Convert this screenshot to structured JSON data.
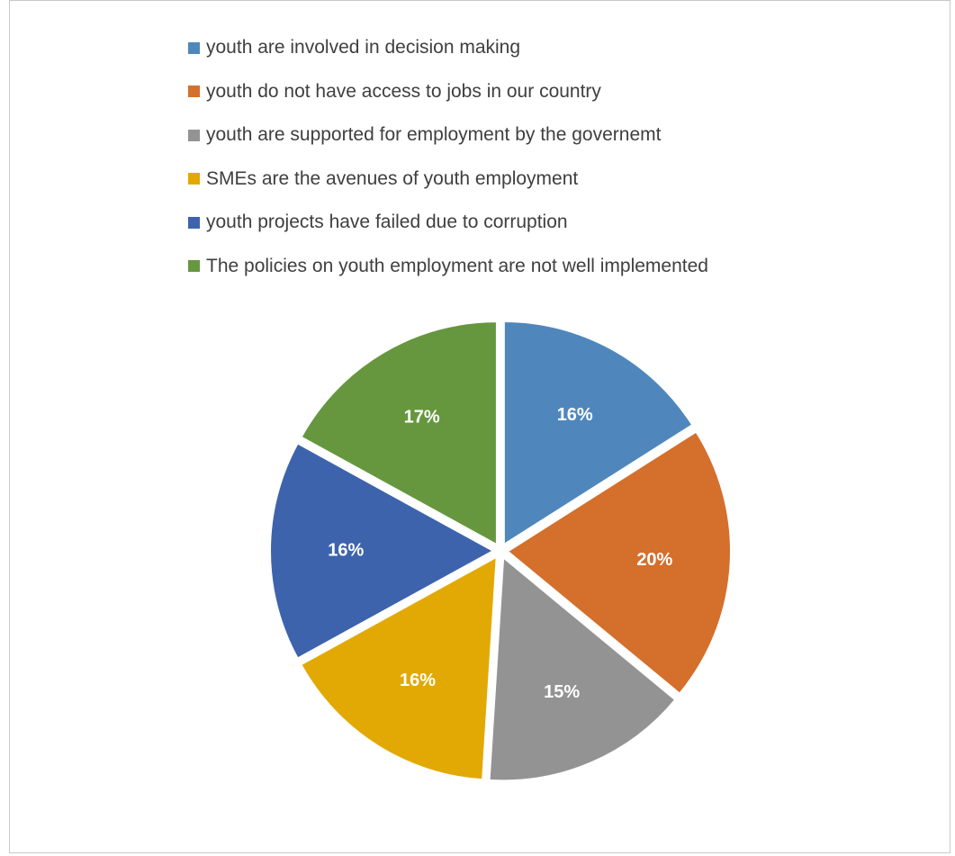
{
  "chart_data": {
    "type": "pie",
    "title": "",
    "legend_position": "top",
    "slices": [
      {
        "name": "youth are involved in decision making",
        "value": 16,
        "label": "16%",
        "color": "#4f87bc"
      },
      {
        "name": "youth do not have access to jobs in our country",
        "value": 20,
        "label": "20%",
        "color": "#d46f2c"
      },
      {
        "name": "youth are supported for employment by the governemt",
        "value": 15,
        "label": "15%",
        "color": "#939393"
      },
      {
        "name": "SMEs are the avenues of youth employment",
        "value": 16,
        "label": "16%",
        "color": "#e2a904"
      },
      {
        "name": "youth projects have failed due to corruption",
        "value": 16,
        "label": "16%",
        "color": "#3d63ad"
      },
      {
        "name": "The policies on youth employment are  not well implemented",
        "value": 17,
        "label": "17%",
        "color": "#66973f"
      }
    ]
  }
}
